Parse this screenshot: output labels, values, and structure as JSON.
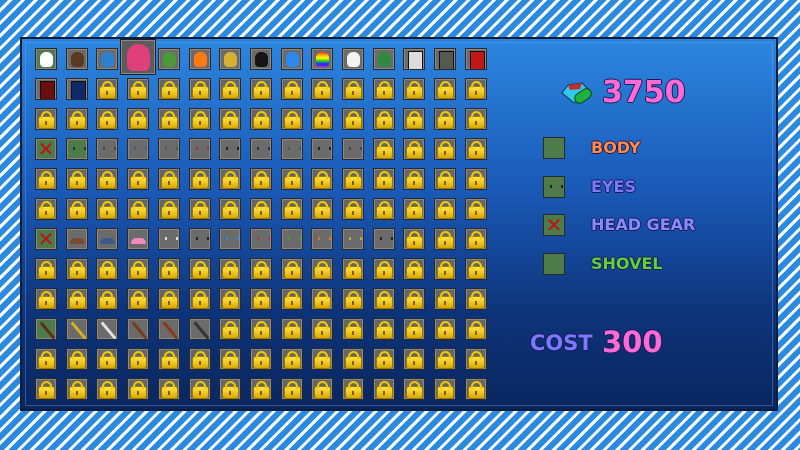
{
  "currency": {
    "icon": "gem-icon",
    "amount": "3750"
  },
  "categories": [
    {
      "label": "BODY",
      "icon": "body"
    },
    {
      "label": "EYES",
      "icon": "eyes"
    },
    {
      "label": "HEAD GEAR",
      "icon": "none"
    },
    {
      "label": "SHOVEL",
      "icon": "shovel"
    }
  ],
  "cost": {
    "label": "COST",
    "value": "300"
  },
  "letter_colors": [
    "#ff6bd6",
    "#ff7a3a",
    "#5fd23a",
    "#ffe23a",
    "#6a6aff",
    "#ff4fb0"
  ],
  "grid": {
    "rows": [
      [
        "body:#ffffff",
        "body:#5a3a22",
        "body:#2f7fd0",
        "body:#e0407a",
        "body:#4a9a3a",
        "body:#ff7a10",
        "body:#d6b030",
        "body:#151515",
        "body:#2a8af0",
        "body:rainbow",
        "body:#f4f4f4",
        "body:#2e8a3e",
        "box:#dcdcdc",
        "box:#555a50",
        "box:#c01818"
      ],
      [
        "box:#6a0e0e",
        "box:#0e2a6a",
        "lock",
        "lock",
        "lock",
        "lock",
        "lock",
        "lock",
        "lock",
        "lock",
        "lock",
        "lock",
        "lock",
        "lock",
        "lock"
      ],
      [
        "lock",
        "lock",
        "lock",
        "lock",
        "lock",
        "lock",
        "lock",
        "lock",
        "lock",
        "lock",
        "lock",
        "lock",
        "lock",
        "lock",
        "lock"
      ],
      [
        "none",
        "eyes:#2a3a2a",
        "eyes:#444",
        "eyes:#556",
        "eyes:#3a6a3a",
        "eyes:#8a3a3a",
        "eyes:#222",
        "eyes:#333",
        "eyes:#555",
        "eyes:#222",
        "eyes:#444",
        "lock",
        "lock",
        "lock",
        "lock"
      ],
      [
        "lock",
        "lock",
        "lock",
        "lock",
        "lock",
        "lock",
        "lock",
        "lock",
        "lock",
        "lock",
        "lock",
        "lock",
        "lock",
        "lock",
        "lock"
      ],
      [
        "lock",
        "lock",
        "lock",
        "lock",
        "lock",
        "lock",
        "lock",
        "lock",
        "lock",
        "lock",
        "lock",
        "lock",
        "lock",
        "lock",
        "lock"
      ],
      [
        "none",
        "hat:#7a4a30",
        "hat:#3a5a8a",
        "hat:#f08ac0",
        "eyes:#ddd",
        "eyes:#222",
        "eyes:#2a8ae0",
        "eyes:#a03a5a",
        "eyes:#4a9a3a",
        "eyes:#e07020",
        "eyes:#b0b040",
        "eyes:#222",
        "lock",
        "lock",
        "lock"
      ],
      [
        "lock",
        "lock",
        "lock",
        "lock",
        "lock",
        "lock",
        "lock",
        "lock",
        "lock",
        "lock",
        "lock",
        "lock",
        "lock",
        "lock",
        "lock"
      ],
      [
        "lock",
        "lock",
        "lock",
        "lock",
        "lock",
        "lock",
        "lock",
        "lock",
        "lock",
        "lock",
        "lock",
        "lock",
        "lock",
        "lock",
        "lock"
      ],
      [
        "shovel:#5a3018",
        "shovel:#d8b020",
        "shovel:#e0e0e0",
        "shovel:#7a3a1a",
        "shovel:#8a3a10",
        "shovel:#333",
        "lock",
        "lock",
        "lock",
        "lock",
        "lock",
        "lock",
        "lock",
        "lock",
        "lock"
      ],
      [
        "lock",
        "lock",
        "lock",
        "lock",
        "lock",
        "lock",
        "lock",
        "lock",
        "lock",
        "lock",
        "lock",
        "lock",
        "lock",
        "lock",
        "lock"
      ],
      [
        "lock",
        "lock",
        "lock",
        "lock",
        "lock",
        "lock",
        "lock",
        "lock",
        "lock",
        "lock",
        "lock",
        "lock",
        "lock",
        "lock",
        "lock"
      ]
    ],
    "selected": [
      [
        0,
        0
      ],
      [
        3,
        0
      ],
      [
        3,
        1
      ],
      [
        6,
        0
      ],
      [
        9,
        0
      ]
    ],
    "highlighted": [
      0,
      3
    ]
  }
}
